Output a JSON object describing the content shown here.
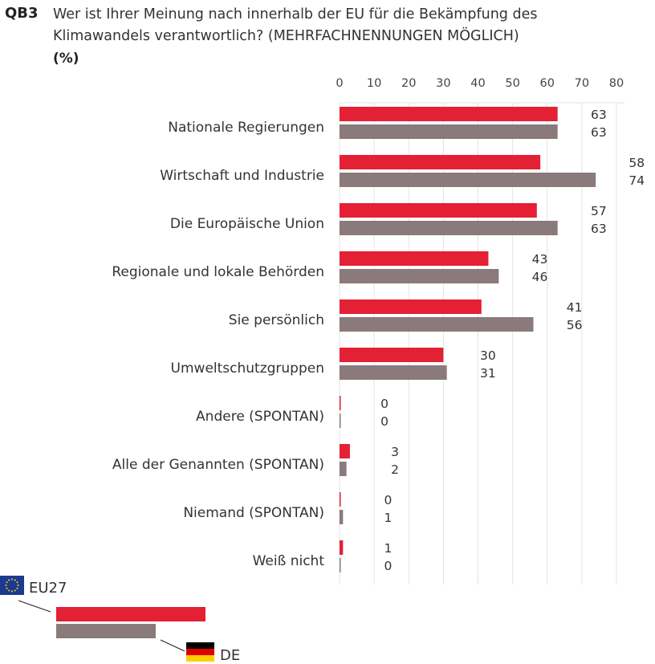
{
  "header": {
    "code": "QB3",
    "title": "Wer ist Ihrer Meinung nach innerhalb der EU für die Bekämpfung des Klimawandels verantwortlich? (MEHRFACHNENNUNGEN MÖGLICH)",
    "unit": "(%)"
  },
  "chart_data": {
    "type": "bar",
    "orientation": "horizontal",
    "title": "Wer ist Ihrer Meinung nach innerhalb der EU für die Bekämpfung des Klimawandels verantwortlich? (MEHRFACHNENNUNGEN MÖGLICH)",
    "xlabel": "",
    "ylabel": "(%)",
    "xlim": [
      0,
      80
    ],
    "ticks": [
      0,
      10,
      20,
      30,
      40,
      50,
      60,
      70,
      80
    ],
    "grid": true,
    "categories": [
      "Nationale Regierungen",
      "Wirtschaft und Industrie",
      "Die Europäische Union",
      "Regionale und lokale Behörden",
      "Sie persönlich",
      "Umweltschutzgruppen",
      "Andere (SPONTAN)",
      "Alle der Genannten (SPONTAN)",
      "Niemand (SPONTAN)",
      "Weiß nicht"
    ],
    "series": [
      {
        "name": "EU27",
        "color": "#e32034",
        "values": [
          63,
          58,
          57,
          43,
          41,
          30,
          0,
          3,
          0,
          1
        ]
      },
      {
        "name": "DE",
        "color": "#8a7a7c",
        "values": [
          63,
          74,
          63,
          46,
          56,
          31,
          0,
          2,
          1,
          0
        ]
      }
    ],
    "legend": {
      "position": "bottom-left",
      "entries": [
        "EU27",
        "DE"
      ]
    }
  }
}
